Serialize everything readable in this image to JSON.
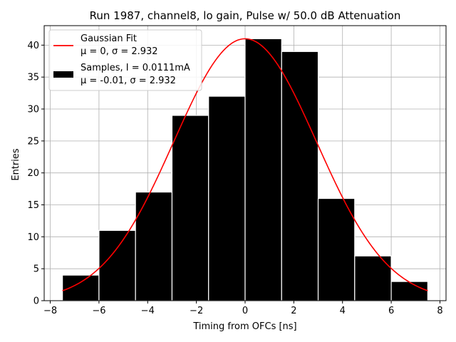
{
  "chart_data": {
    "type": "bar",
    "title": "Run 1987, channel8, lo gain, Pulse w/ 50.0 dB Attenuation",
    "xlabel": "Timing from OFCs [ns]",
    "ylabel": "Entries",
    "xlim": [
      -8.25,
      8.25
    ],
    "ylim": [
      0,
      43.05
    ],
    "xticks": [
      -8,
      -6,
      -4,
      -2,
      0,
      2,
      4,
      6,
      8
    ],
    "xtick_labels": [
      "−8",
      "−6",
      "−4",
      "−2",
      "0",
      "2",
      "4",
      "6",
      "8"
    ],
    "yticks": [
      0,
      5,
      10,
      15,
      20,
      25,
      30,
      35,
      40
    ],
    "ytick_labels": [
      "0",
      "5",
      "10",
      "15",
      "20",
      "25",
      "30",
      "35",
      "40"
    ],
    "grid": true,
    "bins": {
      "edges": [
        -7.5,
        -6.0,
        -4.5,
        -3.0,
        -1.5,
        0.0,
        1.5,
        3.0,
        4.5,
        6.0,
        7.5
      ],
      "counts": [
        4,
        11,
        17,
        29,
        32,
        41,
        39,
        16,
        7,
        3
      ]
    },
    "fit": {
      "mu": 0,
      "sigma": 2.932,
      "amplitude": 41.0,
      "x_range": [
        -7.5,
        7.5
      ]
    },
    "legend": {
      "position": "top-left",
      "entries": [
        {
          "label_line1": "Gaussian Fit",
          "label_line2": "μ = 0, σ = 2.932",
          "color": "#ff0000",
          "kind": "line"
        },
        {
          "label_line1": "Samples, I = 0.0111mA",
          "label_line2": "μ = -0.01, σ = 2.932",
          "color": "#000000",
          "kind": "patch"
        }
      ]
    }
  }
}
